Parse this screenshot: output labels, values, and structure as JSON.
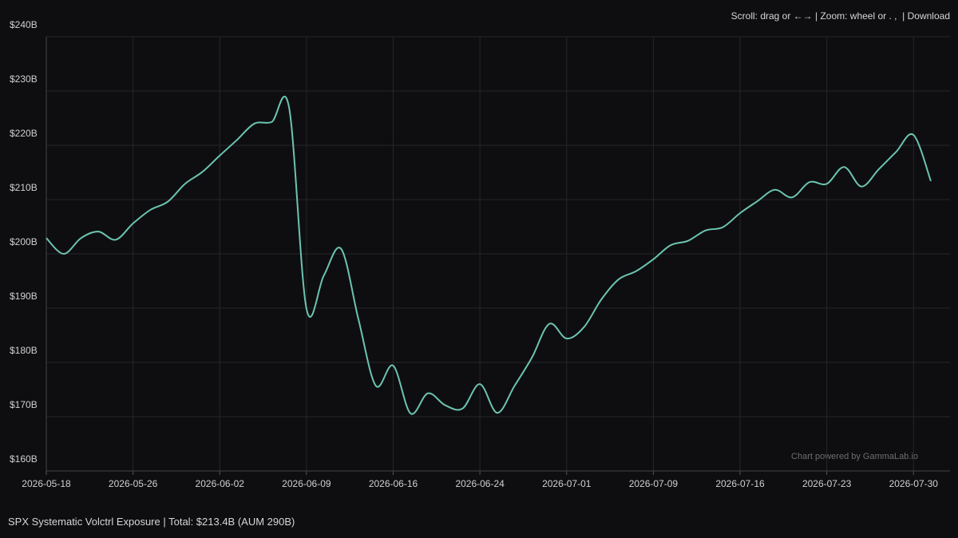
{
  "controls_hint": "Scroll: drag or ←→ | Zoom: wheel or . ,  |",
  "download": "Download",
  "footer": "SPX Systematic Volctrl Exposure | Total: $213.4B (AUM 290B)",
  "chart_data": {
    "type": "line",
    "watermark": "Chart powered by GammaLab.io",
    "categories": [
      "2026-05-18",
      null,
      null,
      null,
      null,
      "2026-05-26",
      null,
      null,
      null,
      null,
      "2026-06-02",
      null,
      null,
      null,
      null,
      "2026-06-09",
      null,
      null,
      null,
      null,
      "2026-06-16",
      null,
      null,
      null,
      null,
      "2026-06-24",
      null,
      null,
      null,
      null,
      "2026-07-01",
      null,
      null,
      null,
      null,
      "2026-07-09",
      null,
      null,
      null,
      null,
      "2026-07-16",
      null,
      null,
      null,
      null,
      "2026-07-23",
      null,
      null,
      null,
      null,
      "2026-07-30",
      null
    ],
    "series": [
      {
        "color": "#6cc4b1",
        "values": [
          202.9,
          200.0,
          202.9,
          204.1,
          202.6,
          205.6,
          208.1,
          209.6,
          212.9,
          215.1,
          218.1,
          221.0,
          224.0,
          224.3,
          226.9,
          189.9,
          196.0,
          200.9,
          187.9,
          175.7,
          179.4,
          170.6,
          174.3,
          172.1,
          171.5,
          176.0,
          170.7,
          175.7,
          180.9,
          187.1,
          184.4,
          186.5,
          191.6,
          195.3,
          196.8,
          199.0,
          201.6,
          202.4,
          204.3,
          204.9,
          207.5,
          209.7,
          211.8,
          210.4,
          213.2,
          212.9,
          216.0,
          212.4,
          215.6,
          218.8,
          221.9,
          213.4
        ]
      }
    ],
    "ylim": [
      160,
      240
    ],
    "yticks": [
      {
        "value": 160,
        "label": "$160B"
      },
      {
        "value": 170,
        "label": "$170B"
      },
      {
        "value": 180,
        "label": "$180B"
      },
      {
        "value": 190,
        "label": "$190B"
      },
      {
        "value": 200,
        "label": "$200B"
      },
      {
        "value": 210,
        "label": "$210B"
      },
      {
        "value": 220,
        "label": "$220B"
      },
      {
        "value": 230,
        "label": "$230B"
      },
      {
        "value": 240,
        "label": "$240B"
      }
    ],
    "grid": true
  }
}
